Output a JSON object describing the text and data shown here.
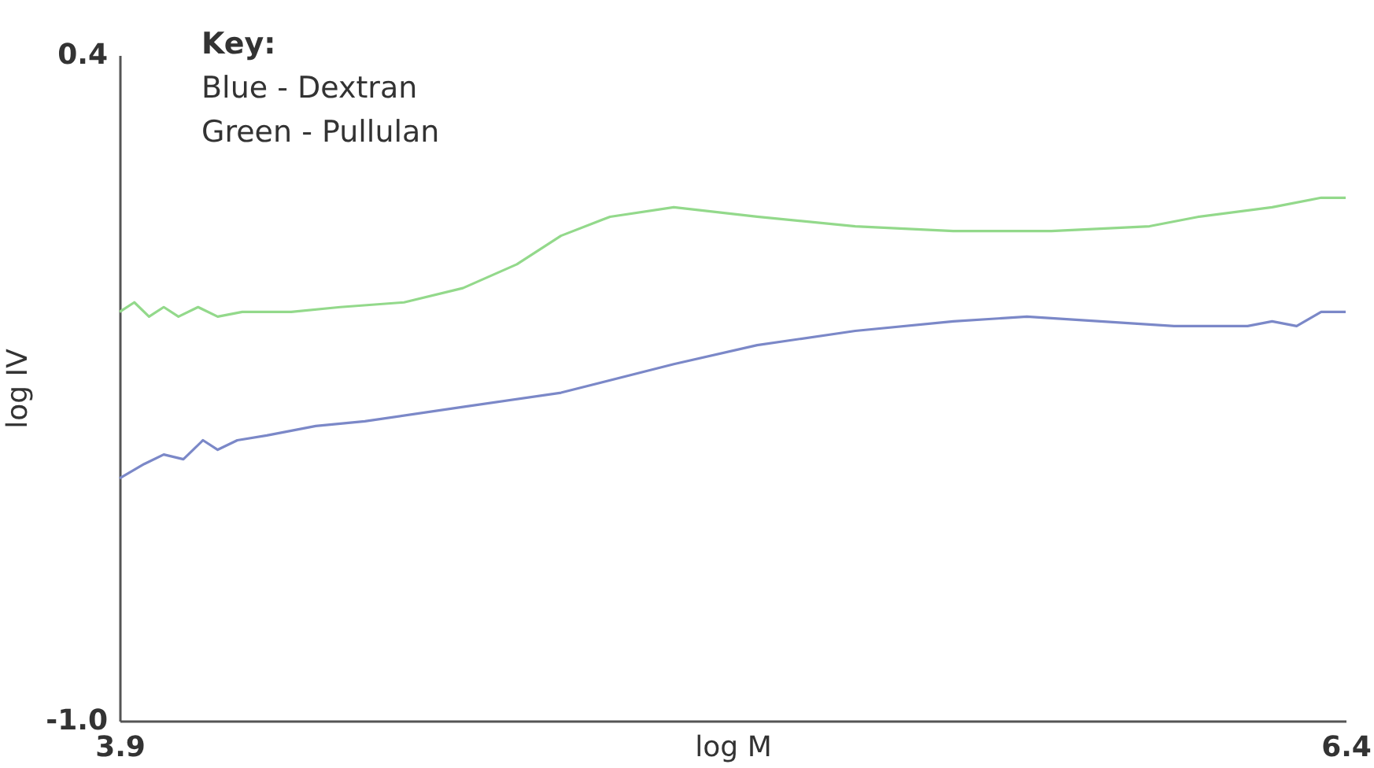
{
  "chart_data": {
    "type": "line",
    "xlabel": "log M",
    "ylabel": "log IV",
    "xlim": [
      3.9,
      6.4
    ],
    "ylim": [
      -1.0,
      0.4
    ],
    "xticks": [
      3.9,
      6.4
    ],
    "yticks": [
      {
        "value": -1,
        "label": "-1.0"
      },
      0.4
    ],
    "grid": false,
    "marker": "none",
    "line_style": "solid",
    "annotations": [
      "Key:",
      "Blue - Dextran",
      "Green - Pullulan"
    ],
    "series": [
      {
        "color": "#7b88c8",
        "x": [
          3.9,
          3.95,
          3.99,
          4.03,
          4.07,
          4.1,
          4.14,
          4.2,
          4.3,
          4.4,
          4.6,
          4.8,
          5.03,
          5.2,
          5.4,
          5.6,
          5.75,
          5.9,
          6.05,
          6.2,
          6.25,
          6.3,
          6.35,
          6.4
        ],
        "values": [
          -0.49,
          -0.46,
          -0.44,
          -0.45,
          -0.41,
          -0.43,
          -0.41,
          -0.4,
          -0.38,
          -0.37,
          -0.34,
          -0.31,
          -0.25,
          -0.21,
          -0.18,
          -0.16,
          -0.15,
          -0.16,
          -0.17,
          -0.17,
          -0.16,
          -0.17,
          -0.14,
          -0.14
        ]
      },
      {
        "color": "#93d98b",
        "x": [
          3.9,
          3.93,
          3.96,
          3.99,
          4.02,
          4.06,
          4.1,
          4.15,
          4.25,
          4.35,
          4.48,
          4.6,
          4.71,
          4.8,
          4.9,
          5.03,
          5.2,
          5.4,
          5.6,
          5.8,
          6.0,
          6.1,
          6.25,
          6.35,
          6.4
        ],
        "values": [
          -0.14,
          -0.12,
          -0.15,
          -0.13,
          -0.15,
          -0.13,
          -0.15,
          -0.14,
          -0.14,
          -0.13,
          -0.12,
          -0.09,
          -0.04,
          0.02,
          0.06,
          0.08,
          0.06,
          0.04,
          0.03,
          0.03,
          0.04,
          0.06,
          0.08,
          0.1,
          0.1
        ]
      }
    ]
  }
}
